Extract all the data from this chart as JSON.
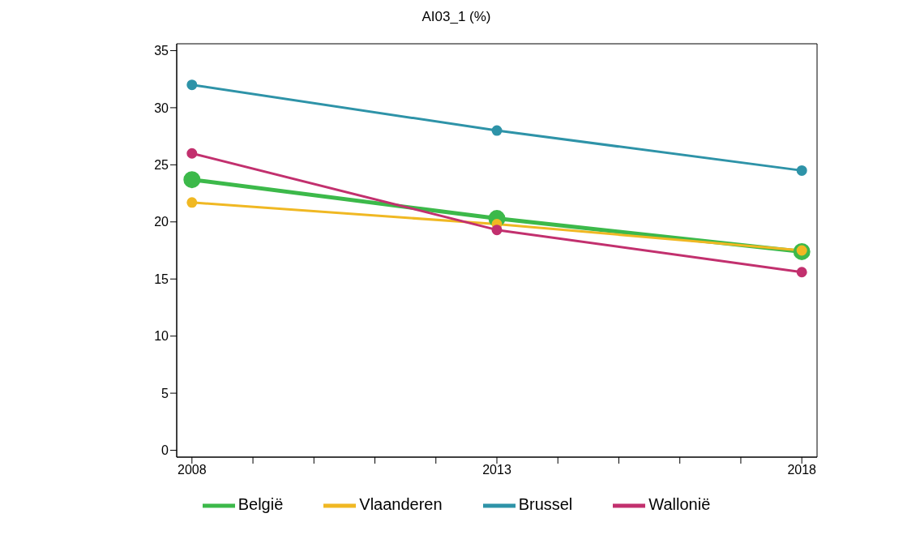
{
  "chart_data": {
    "type": "line",
    "title": "AI03_1 (%)",
    "x": [
      2008,
      2013,
      2018
    ],
    "series": [
      {
        "name": "België",
        "color": "#3cb94a",
        "values": [
          23.7,
          20.3,
          17.4
        ]
      },
      {
        "name": "Vlaanderen",
        "color": "#f0b823",
        "values": [
          21.7,
          19.8,
          17.5
        ]
      },
      {
        "name": "Brussel",
        "color": "#2e93a8",
        "values": [
          32.0,
          28.0,
          24.5
        ]
      },
      {
        "name": "Wallonië",
        "color": "#c2306e",
        "values": [
          26.0,
          19.3,
          15.6
        ]
      }
    ],
    "xlim": [
      2007.75,
      2018.25
    ],
    "xticks": [
      2008,
      {
        "value": 2009,
        "label": null
      },
      {
        "value": 2010,
        "label": null
      },
      {
        "value": 2011,
        "label": null
      },
      {
        "value": 2012,
        "label": null
      },
      2013,
      {
        "value": 2014,
        "label": null
      },
      {
        "value": 2015,
        "label": null
      },
      {
        "value": 2016,
        "label": null
      },
      {
        "value": 2017,
        "label": null
      },
      2018
    ],
    "ylim": [
      -0.6,
      35.6
    ],
    "yticks": [
      0,
      5,
      10,
      15,
      20,
      25,
      30,
      35
    ],
    "grid": false,
    "legend": "bottom",
    "marker": "circle",
    "line_style": "solid"
  }
}
